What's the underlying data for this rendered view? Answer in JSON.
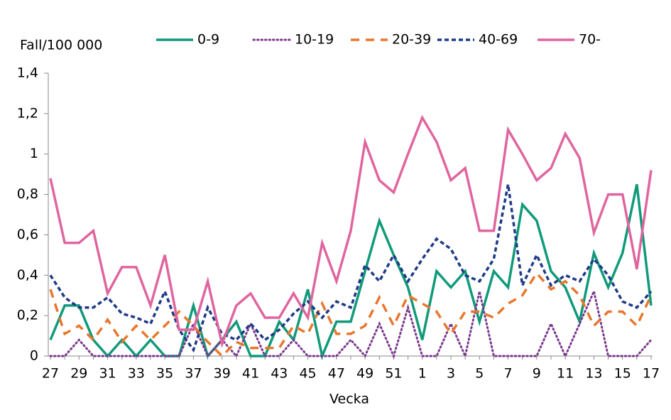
{
  "chart_data": {
    "type": "line",
    "ylabel": "Fall/100 000",
    "xlabel": "Vecka",
    "categories": [
      "27",
      null,
      "29",
      null,
      "31",
      null,
      "33",
      null,
      "35",
      null,
      "37",
      null,
      "39",
      null,
      "41",
      null,
      "43",
      null,
      "45",
      null,
      "47",
      null,
      "49",
      null,
      "51",
      null,
      "1",
      null,
      "3",
      null,
      "5",
      null,
      "7",
      null,
      "9",
      null,
      "11",
      null,
      "13",
      null,
      "15",
      null,
      "17"
    ],
    "ylim": [
      0,
      1.4
    ],
    "yticks": [
      0,
      {
        "value": 0.2,
        "label": "0,2"
      },
      {
        "value": 0.4,
        "label": "0,4"
      },
      {
        "value": 0.6,
        "label": "0,6"
      },
      {
        "value": 0.8,
        "label": "0,8"
      },
      1,
      {
        "value": 1.2,
        "label": "1,2"
      },
      {
        "value": 1.4,
        "label": "1,4"
      }
    ],
    "grid": false,
    "legend": "top",
    "series": [
      {
        "name": "0-9",
        "color": "#109a7a",
        "dash": "solid",
        "values": [
          0.08,
          0.25,
          0.25,
          0.08,
          0,
          0.08,
          0,
          0.08,
          0,
          0,
          0.25,
          0,
          0.08,
          0.17,
          0,
          0,
          0.17,
          0.08,
          0.33,
          0,
          0.17,
          0.17,
          0.42,
          0.67,
          0.5,
          0.34,
          0.08,
          0.42,
          0.34,
          0.42,
          0.17,
          0.42,
          0.34,
          0.75,
          0.67,
          0.42,
          0.34,
          0.17,
          0.51,
          0.34,
          0.51,
          0.85,
          0.25
        ]
      },
      {
        "name": "10-19",
        "color": "#7b3a8e",
        "dash": "dotted",
        "values": [
          0,
          0,
          0.08,
          0,
          0,
          0,
          0,
          0,
          0,
          0,
          0.16,
          0,
          0.08,
          0,
          0.16,
          0,
          0,
          0.08,
          0,
          0,
          0,
          0.08,
          0,
          0.16,
          0,
          0.24,
          0,
          0,
          0.16,
          0,
          0.32,
          0,
          0,
          0,
          0,
          0.16,
          0,
          0.16,
          0.32,
          0,
          0,
          0,
          0.08
        ]
      },
      {
        "name": "20-39",
        "color": "#e8772e",
        "dash": "dashed",
        "values": [
          0.33,
          0.11,
          0.15,
          0.08,
          0.18,
          0.07,
          0.15,
          0.08,
          0.15,
          0.22,
          0.15,
          0.07,
          0,
          0.07,
          0.04,
          0.04,
          0.04,
          0.15,
          0.11,
          0.26,
          0.11,
          0.11,
          0.15,
          0.29,
          0.15,
          0.3,
          0.26,
          0.22,
          0.11,
          0.22,
          0.22,
          0.19,
          0.26,
          0.3,
          0.41,
          0.33,
          0.37,
          0.3,
          0.15,
          0.22,
          0.22,
          0.15,
          0.3
        ]
      },
      {
        "name": "40-69",
        "color": "#1f3b87",
        "dash": "short-dashed",
        "values": [
          0.4,
          0.29,
          0.24,
          0.24,
          0.29,
          0.21,
          0.19,
          0.16,
          0.32,
          0.13,
          0.03,
          0.24,
          0.11,
          0.08,
          0.16,
          0.08,
          0.13,
          0.21,
          0.27,
          0.19,
          0.27,
          0.24,
          0.45,
          0.37,
          0.5,
          0.37,
          0.48,
          0.58,
          0.53,
          0.4,
          0.37,
          0.48,
          0.85,
          0.35,
          0.5,
          0.35,
          0.4,
          0.37,
          0.48,
          0.4,
          0.27,
          0.24,
          0.32
        ]
      },
      {
        "name": "70-",
        "color": "#e0659f",
        "dash": "solid",
        "values": [
          0.88,
          0.56,
          0.56,
          0.62,
          0.31,
          0.44,
          0.44,
          0.25,
          0.5,
          0.13,
          0.13,
          0.37,
          0.06,
          0.25,
          0.31,
          0.19,
          0.19,
          0.31,
          0.19,
          0.56,
          0.37,
          0.62,
          1.06,
          0.87,
          0.81,
          1.0,
          1.18,
          1.06,
          0.87,
          0.93,
          0.62,
          0.62,
          1.12,
          1.0,
          0.87,
          0.93,
          1.1,
          0.98,
          0.61,
          0.8,
          0.8,
          0.43,
          0.92
        ]
      }
    ]
  }
}
